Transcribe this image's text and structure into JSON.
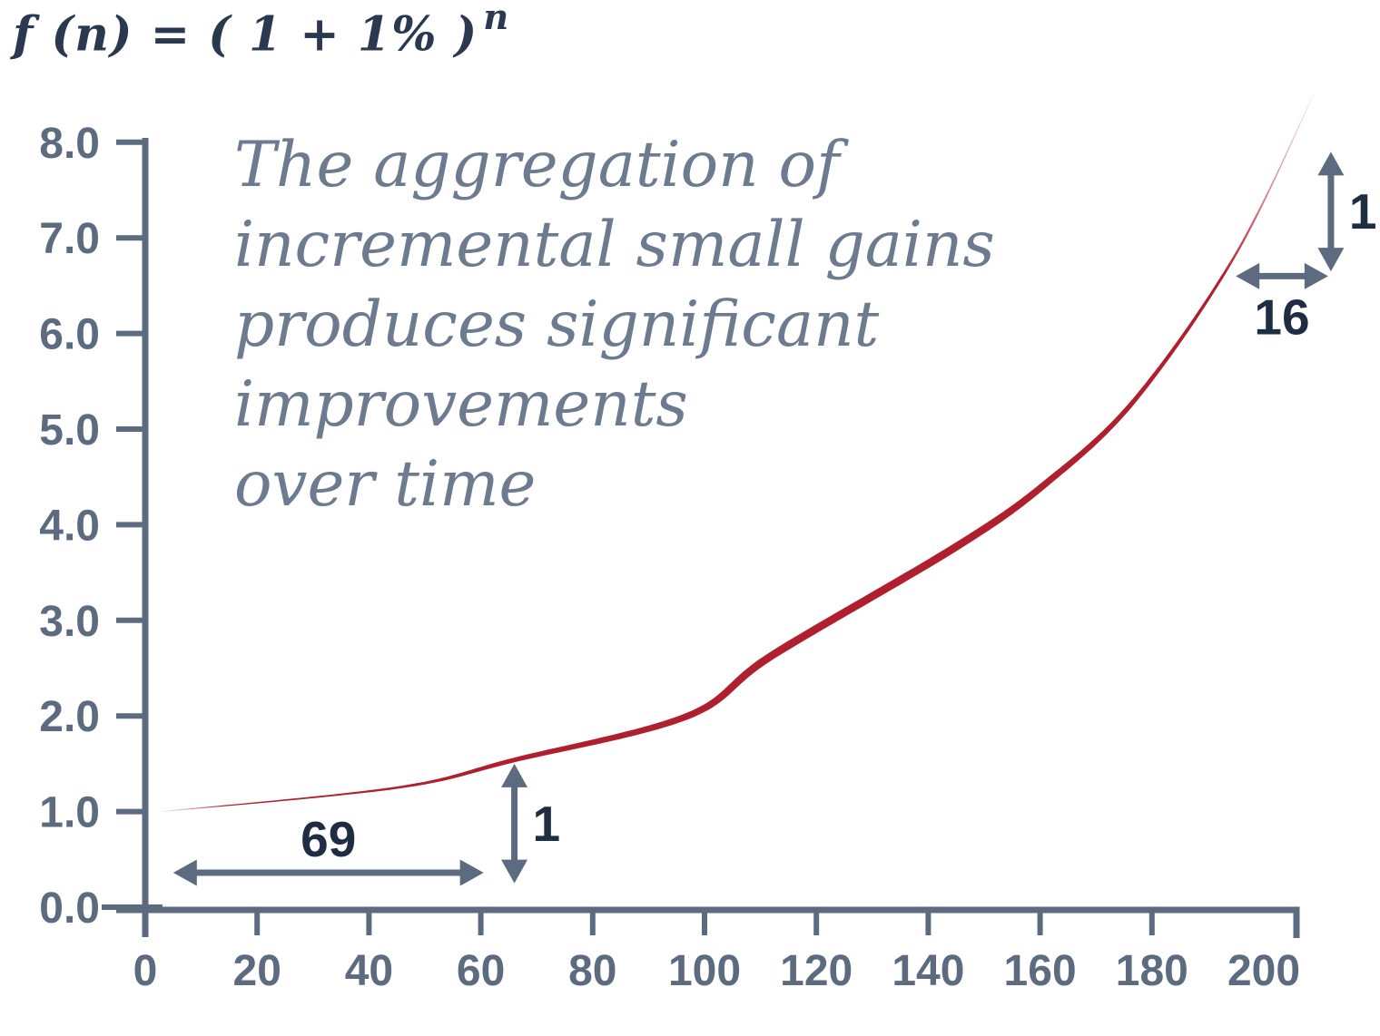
{
  "formula": {
    "base": "f (n) = ( 1 + 1% )",
    "exponent": "n",
    "color": "#2a3950"
  },
  "annotation": {
    "full_text": "The aggregation of incremental small gains produces significant improvements over time",
    "lines": [
      "The aggregation of",
      "incremental small gains",
      "produces significant",
      "improvements",
      "over time"
    ],
    "color": "#6c7b90"
  },
  "chart_data": {
    "type": "line",
    "title": "f(n) = (1 + 1%)^n",
    "legend": "none",
    "grid": false,
    "x_axis": {
      "min": 0,
      "max": 200,
      "tick_step": 20,
      "labels": [
        "0",
        "20",
        "40",
        "60",
        "80",
        "100",
        "120",
        "140",
        "160",
        "180",
        "200"
      ]
    },
    "y_axis": {
      "min": 0.0,
      "max": 8.0,
      "tick_step": 1.0,
      "labels": [
        "0.0",
        "1.0",
        "2.0",
        "3.0",
        "4.0",
        "5.0",
        "6.0",
        "7.0",
        "8.0"
      ]
    },
    "series": [
      {
        "name": "compound-growth-curve",
        "formula": "f(n) = (1 + 0.01)^n",
        "color": "#b01f2e",
        "style": "tapered-stroke",
        "samples": [
          [
            3,
            1.0
          ],
          [
            45,
            1.25
          ],
          [
            66,
            1.54
          ],
          [
            97,
            2.0
          ],
          [
            112,
            2.63
          ],
          [
            145,
            3.77
          ],
          [
            161,
            4.43
          ],
          [
            177,
            5.31
          ],
          [
            195,
            6.83
          ],
          [
            209,
            8.51
          ]
        ]
      }
    ],
    "callouts": [
      {
        "label": "69",
        "orientation": "horizontal",
        "n_from": 5,
        "n_to": 60.5,
        "at_value": 0.36,
        "label_pos": "above",
        "meaning": "periods to gain +1 at the start"
      },
      {
        "label": "1",
        "orientation": "vertical",
        "at_n": 66,
        "value_from": 0.25,
        "value_to": 1.5,
        "label_pos": "right",
        "meaning": "gain of 1 over 69 periods"
      },
      {
        "label": "16",
        "orientation": "horizontal",
        "n_from": 195,
        "n_to": 211.5,
        "at_value": 6.6,
        "label_pos": "below",
        "meaning": "periods to gain +1 near the end"
      },
      {
        "label": "1",
        "orientation": "vertical",
        "at_n": 212,
        "value_from": 6.65,
        "value_to": 7.9,
        "label_pos": "right",
        "meaning": "gain of 1 over 16 periods"
      }
    ],
    "colors": {
      "axis": "#5c6b80",
      "tick_label": "#5c6b80",
      "callout_arrow": "#5c6b80",
      "callout_text": "#1e2c44",
      "curve": "#b01f2e"
    }
  }
}
